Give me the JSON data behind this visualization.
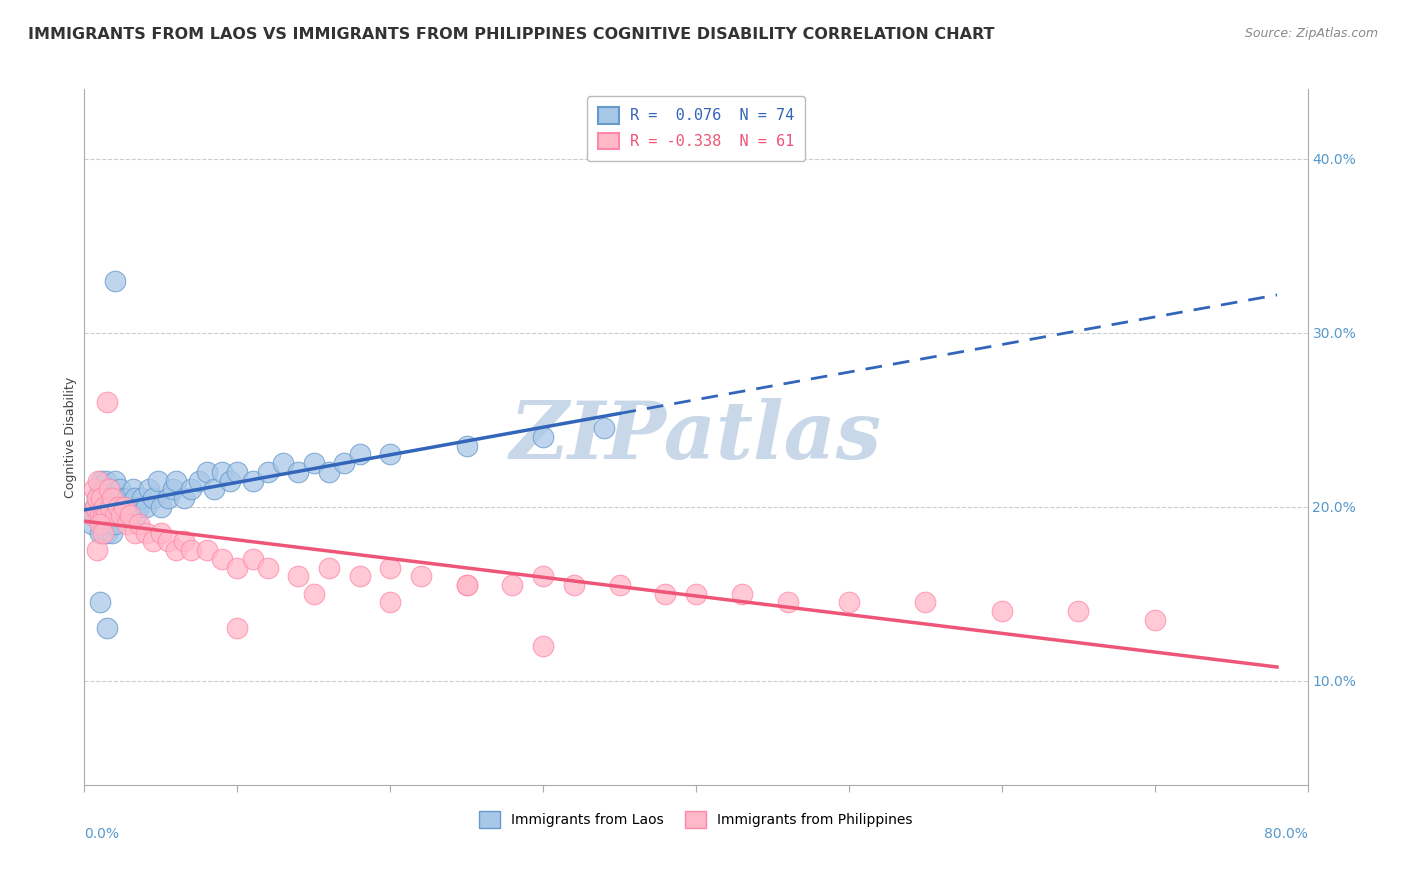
{
  "title": "IMMIGRANTS FROM LAOS VS IMMIGRANTS FROM PHILIPPINES COGNITIVE DISABILITY CORRELATION CHART",
  "source": "Source: ZipAtlas.com",
  "ylabel": "Cognitive Disability",
  "y_ticks": [
    0.1,
    0.2,
    0.3,
    0.4
  ],
  "y_tick_labels": [
    "10.0%",
    "20.0%",
    "30.0%",
    "40.0%"
  ],
  "xlim": [
    0.0,
    0.8
  ],
  "ylim": [
    0.04,
    0.44
  ],
  "series1_name": "Immigrants from Laos",
  "series1_R": 0.076,
  "series1_N": 74,
  "series1_color": "#A8C8E8",
  "series1_edge_color": "#6699CC",
  "series1_line_color": "#3366BB",
  "series2_name": "Immigrants from Philippines",
  "series2_R": -0.338,
  "series2_N": 61,
  "series2_color": "#FFB8C8",
  "series2_edge_color": "#FF88AA",
  "series2_line_color": "#EE5577",
  "watermark": "ZIPatlas",
  "watermark_color": "#C8D8E8",
  "background_color": "#FFFFFF",
  "grid_color": "#CCCCCC",
  "title_fontsize": 11.5,
  "source_fontsize": 9,
  "ylabel_fontsize": 9,
  "tick_fontsize": 10,
  "legend_fontsize": 10,
  "laos_x": [
    0.005,
    0.006,
    0.007,
    0.008,
    0.009,
    0.01,
    0.01,
    0.011,
    0.011,
    0.012,
    0.012,
    0.013,
    0.013,
    0.014,
    0.014,
    0.015,
    0.015,
    0.016,
    0.016,
    0.017,
    0.017,
    0.018,
    0.018,
    0.019,
    0.019,
    0.02,
    0.02,
    0.021,
    0.022,
    0.022,
    0.023,
    0.023,
    0.024,
    0.025,
    0.026,
    0.027,
    0.028,
    0.03,
    0.032,
    0.033,
    0.034,
    0.036,
    0.038,
    0.04,
    0.042,
    0.045,
    0.048,
    0.05,
    0.055,
    0.058,
    0.06,
    0.065,
    0.07,
    0.075,
    0.08,
    0.085,
    0.09,
    0.095,
    0.1,
    0.11,
    0.12,
    0.13,
    0.14,
    0.15,
    0.16,
    0.17,
    0.18,
    0.2,
    0.25,
    0.3,
    0.34,
    0.01,
    0.015,
    0.02
  ],
  "laos_y": [
    0.19,
    0.195,
    0.2,
    0.205,
    0.195,
    0.21,
    0.185,
    0.2,
    0.215,
    0.19,
    0.205,
    0.195,
    0.21,
    0.2,
    0.215,
    0.185,
    0.2,
    0.195,
    0.205,
    0.19,
    0.21,
    0.185,
    0.2,
    0.195,
    0.205,
    0.19,
    0.215,
    0.2,
    0.205,
    0.195,
    0.2,
    0.21,
    0.195,
    0.205,
    0.2,
    0.195,
    0.205,
    0.2,
    0.21,
    0.205,
    0.195,
    0.2,
    0.205,
    0.2,
    0.21,
    0.205,
    0.215,
    0.2,
    0.205,
    0.21,
    0.215,
    0.205,
    0.21,
    0.215,
    0.22,
    0.21,
    0.22,
    0.215,
    0.22,
    0.215,
    0.22,
    0.225,
    0.22,
    0.225,
    0.22,
    0.225,
    0.23,
    0.23,
    0.235,
    0.24,
    0.245,
    0.145,
    0.13,
    0.33
  ],
  "phil_x": [
    0.005,
    0.006,
    0.007,
    0.008,
    0.009,
    0.01,
    0.011,
    0.012,
    0.013,
    0.014,
    0.015,
    0.016,
    0.017,
    0.018,
    0.02,
    0.022,
    0.024,
    0.026,
    0.028,
    0.03,
    0.033,
    0.036,
    0.04,
    0.045,
    0.05,
    0.055,
    0.06,
    0.065,
    0.07,
    0.08,
    0.09,
    0.1,
    0.11,
    0.12,
    0.14,
    0.16,
    0.18,
    0.2,
    0.22,
    0.25,
    0.28,
    0.3,
    0.32,
    0.35,
    0.38,
    0.4,
    0.43,
    0.46,
    0.5,
    0.55,
    0.6,
    0.65,
    0.7,
    0.1,
    0.15,
    0.2,
    0.25,
    0.3,
    0.008,
    0.01,
    0.012
  ],
  "phil_y": [
    0.195,
    0.21,
    0.2,
    0.205,
    0.215,
    0.195,
    0.205,
    0.195,
    0.2,
    0.195,
    0.26,
    0.21,
    0.2,
    0.205,
    0.195,
    0.2,
    0.195,
    0.2,
    0.19,
    0.195,
    0.185,
    0.19,
    0.185,
    0.18,
    0.185,
    0.18,
    0.175,
    0.18,
    0.175,
    0.175,
    0.17,
    0.165,
    0.17,
    0.165,
    0.16,
    0.165,
    0.16,
    0.165,
    0.16,
    0.155,
    0.155,
    0.16,
    0.155,
    0.155,
    0.15,
    0.15,
    0.15,
    0.145,
    0.145,
    0.145,
    0.14,
    0.14,
    0.135,
    0.13,
    0.15,
    0.145,
    0.155,
    0.12,
    0.175,
    0.19,
    0.185
  ]
}
